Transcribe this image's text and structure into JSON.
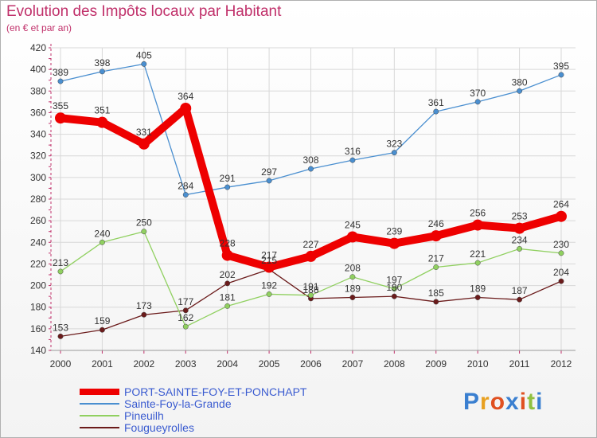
{
  "title": "Evolution des Impôts locaux par Habitant",
  "subtitle": "(en € et par an)",
  "logo_text": "Proxiti",
  "chart_data": {
    "type": "line",
    "x": [
      "2000",
      "2001",
      "2002",
      "2003",
      "2004",
      "2005",
      "2006",
      "2007",
      "2008",
      "2009",
      "2010",
      "2011",
      "2012"
    ],
    "ylim": [
      140,
      420
    ],
    "yticks": [
      140,
      160,
      180,
      200,
      220,
      240,
      260,
      280,
      300,
      320,
      340,
      360,
      380,
      400,
      420
    ],
    "grid": true,
    "series": [
      {
        "name": "PORT-SAINTE-FOY-ET-PONCHAPT",
        "color": "#ee0000",
        "values": [
          355,
          351,
          331,
          364,
          228,
          217,
          227,
          245,
          239,
          246,
          256,
          253,
          264
        ]
      },
      {
        "name": "Sainte-Foy-la-Grande",
        "color": "#4a8fd0",
        "values": [
          389,
          398,
          405,
          284,
          291,
          297,
          308,
          316,
          323,
          361,
          370,
          380,
          395
        ]
      },
      {
        "name": "Pineuilh",
        "color": "#90d060",
        "values": [
          213,
          240,
          250,
          162,
          181,
          192,
          191,
          208,
          197,
          217,
          221,
          234,
          230
        ]
      },
      {
        "name": "Fougueyrolles",
        "color": "#6b1b1b",
        "values": [
          153,
          159,
          173,
          177,
          202,
          215,
          188,
          189,
          190,
          185,
          189,
          187,
          204
        ]
      }
    ]
  }
}
